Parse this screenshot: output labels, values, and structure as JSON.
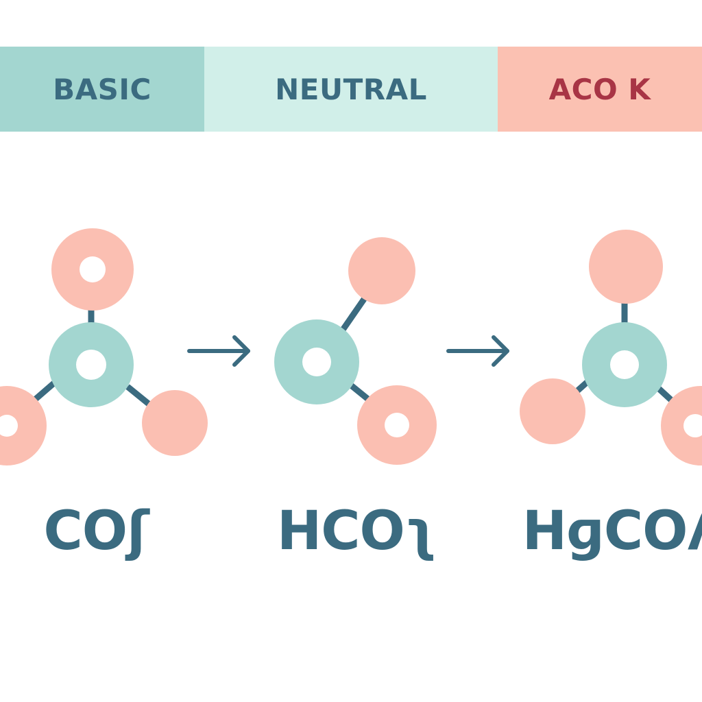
{
  "colors": {
    "basic_band": "#a3d6d0",
    "neutral_band": "#d1efe9",
    "acidic_band": "#fbc1b2",
    "ink": "#3b6b80",
    "acid_text": "#a83545",
    "carbon": "#a3d6d0",
    "oxygen": "#fbbfb2"
  },
  "bands": {
    "basic": "BASIC",
    "neutral": "NEUTRAL",
    "acidic": "ACO K"
  },
  "formulas": {
    "carbonate": "COʃ",
    "bicarbonate": "HCOʅ",
    "carbonic_acid": "HɡCOʎ"
  },
  "icons": {
    "arrow_1": "right-arrow-icon",
    "arrow_2": "right-arrow-icon"
  }
}
